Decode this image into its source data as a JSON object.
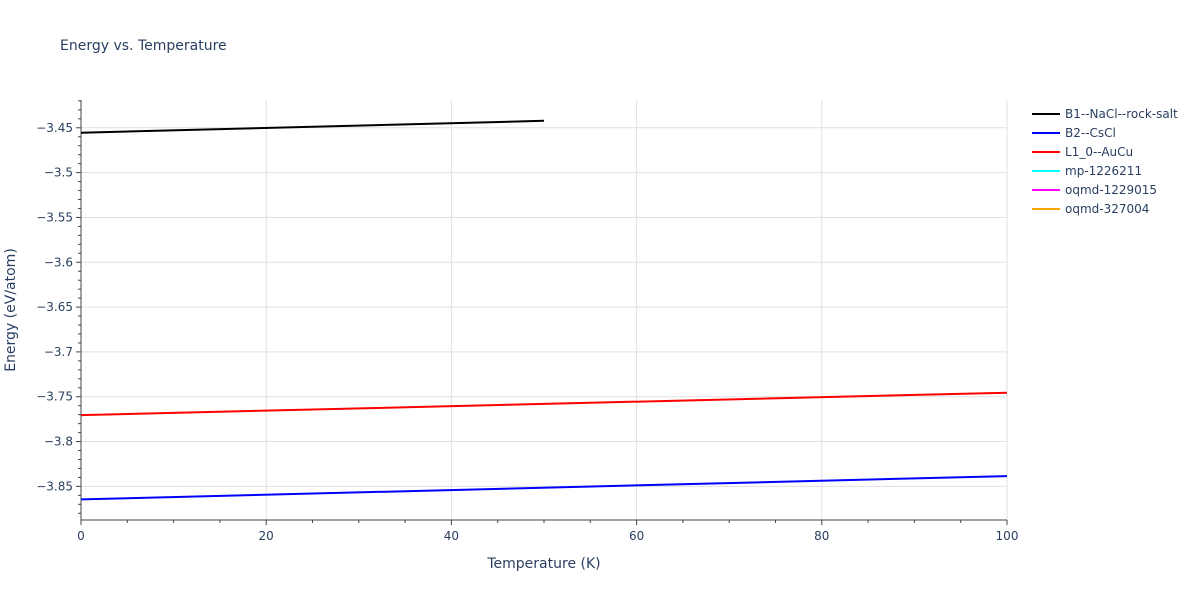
{
  "chart_data": {
    "type": "line",
    "title": "Energy vs. Temperature",
    "xlabel": "Temperature (K)",
    "ylabel": "Energy (eV/atom)",
    "xlim": [
      0,
      100
    ],
    "ylim": [
      -3.8875,
      -3.419
    ],
    "x_ticks": [
      0,
      20,
      40,
      60,
      80,
      100
    ],
    "x_tick_labels": [
      "0",
      "20",
      "40",
      "60",
      "80",
      "100"
    ],
    "y_ticks": [
      -3.45,
      -3.5,
      -3.55,
      -3.6,
      -3.65,
      -3.7,
      -3.75,
      -3.8,
      -3.85
    ],
    "y_tick_labels": [
      "−3.45",
      "−3.5",
      "−3.55",
      "−3.6",
      "−3.65",
      "−3.7",
      "−3.75",
      "−3.8",
      "−3.85"
    ],
    "grid": true,
    "legend_position": "top-right",
    "series": [
      {
        "name": "B1--NaCl--rock-salt",
        "color": "#000000",
        "x": [
          0,
          50
        ],
        "y": [
          -3.4555,
          -3.4422
        ]
      },
      {
        "name": "B2--CsCl",
        "color": "#0000ff",
        "x": [
          0,
          100
        ],
        "y": [
          -3.8645,
          -3.8385
        ]
      },
      {
        "name": "L1_0--AuCu",
        "color": "#ff0000",
        "x": [
          0,
          100
        ],
        "y": [
          -3.7705,
          -3.7455
        ]
      },
      {
        "name": "mp-1226211",
        "color": "#00ffff",
        "x": [],
        "y": []
      },
      {
        "name": "oqmd-1229015",
        "color": "#ff00ff",
        "x": [],
        "y": []
      },
      {
        "name": "oqmd-327004",
        "color": "#ffa500",
        "x": [],
        "y": []
      }
    ]
  }
}
